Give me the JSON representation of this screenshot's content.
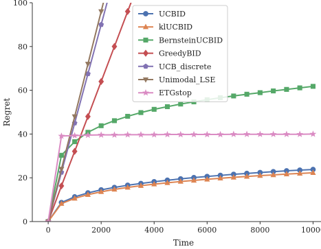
{
  "chart_data": {
    "type": "line",
    "title": "",
    "xlabel": "Time",
    "ylabel": "Regret",
    "xlim": [
      -600,
      10300
    ],
    "ylim": [
      0,
      100
    ],
    "xticks": [
      0,
      2000,
      4000,
      6000,
      8000,
      10000
    ],
    "yticks": [
      0,
      20,
      40,
      60,
      80,
      100
    ],
    "grid": false,
    "legend": "upper-center",
    "series": [
      {
        "name": "UCBID",
        "color": "#4c72b0",
        "marker": "circle",
        "x": [
          0,
          500,
          1000,
          1500,
          2000,
          2500,
          3000,
          3500,
          4000,
          4500,
          5000,
          5500,
          6000,
          6500,
          7000,
          7500,
          8000,
          8500,
          9000,
          9500,
          10000
        ],
        "y": [
          0,
          8.7,
          11.3,
          13.1,
          14.5,
          15.6,
          16.6,
          17.4,
          18.2,
          18.9,
          19.5,
          20.1,
          20.6,
          21.1,
          21.6,
          22.0,
          22.4,
          22.8,
          23.2,
          23.5,
          23.8
        ]
      },
      {
        "name": "klUCBID",
        "color": "#dd8452",
        "marker": "triangle",
        "x": [
          0,
          500,
          1000,
          1500,
          2000,
          2500,
          3000,
          3500,
          4000,
          4500,
          5000,
          5500,
          6000,
          6500,
          7000,
          7500,
          8000,
          8500,
          9000,
          9500,
          10000
        ],
        "y": [
          0,
          8.2,
          10.6,
          12.3,
          13.6,
          14.7,
          15.6,
          16.4,
          17.1,
          17.7,
          18.3,
          18.8,
          19.3,
          19.8,
          20.2,
          20.6,
          21.0,
          21.3,
          21.7,
          22.0,
          22.3
        ]
      },
      {
        "name": "BernsteinUCBID",
        "color": "#55a868",
        "marker": "square",
        "x": [
          0,
          500,
          1000,
          1500,
          2000,
          2500,
          3000,
          3500,
          4000,
          4500,
          5000,
          5500,
          6000,
          6500,
          7000,
          7500,
          8000,
          8500,
          9000,
          9500,
          10000
        ],
        "y": [
          0,
          30.3,
          36.5,
          40.8,
          43.8,
          46.1,
          48.1,
          49.8,
          51.3,
          52.5,
          53.7,
          54.7,
          55.7,
          56.6,
          57.4,
          58.2,
          58.9,
          59.7,
          60.4,
          61.1,
          61.8
        ]
      },
      {
        "name": "GreedyBID",
        "color": "#c44e52",
        "marker": "diamond",
        "x": [
          0,
          500,
          1000,
          1500,
          2000,
          2500,
          3000
        ],
        "y": [
          0,
          16.3,
          32.1,
          48.0,
          64.0,
          80.0,
          96.0
        ]
      },
      {
        "name": "UCB_discrete",
        "color": "#8172b3",
        "marker": "pentagon",
        "x": [
          0,
          500,
          1000,
          1500,
          2000
        ],
        "y": [
          0,
          22.5,
          45.0,
          67.5,
          90.0
        ]
      },
      {
        "name": "Unimodal_LSE",
        "color": "#937860",
        "marker": "triangle-down",
        "x": [
          0,
          500,
          1000,
          1500,
          2000
        ],
        "y": [
          0,
          24.0,
          48.0,
          72.0,
          96.0
        ]
      },
      {
        "name": "ETGstop",
        "color": "#da8bc3",
        "marker": "star",
        "x": [
          0,
          500,
          1000,
          1500,
          2000,
          2500,
          3000,
          3500,
          4000,
          4500,
          5000,
          5500,
          6000,
          6500,
          7000,
          7500,
          8000,
          8500,
          9000,
          9500,
          10000
        ],
        "y": [
          0,
          39.1,
          39.3,
          39.5,
          39.6,
          39.6,
          39.7,
          39.7,
          39.7,
          39.8,
          39.8,
          39.8,
          39.8,
          39.8,
          39.9,
          39.9,
          39.9,
          39.9,
          39.9,
          39.9,
          40.0
        ]
      }
    ]
  }
}
